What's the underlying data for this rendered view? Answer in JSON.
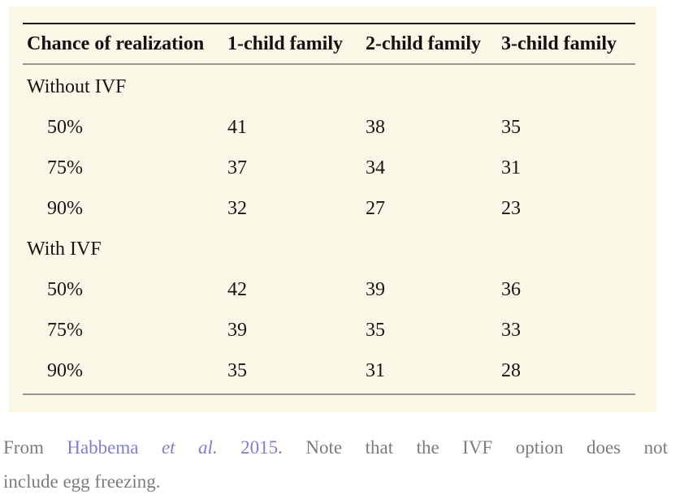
{
  "colors": {
    "card_background": "#fbf7e7",
    "page_background": "#ffffff",
    "top_rule": "#1c1c1c",
    "inner_rules": "#96958f",
    "table_text": "#161616",
    "caption_text": "#7c7c7c",
    "link": "#7f7fd2"
  },
  "chart_data": {
    "type": "table",
    "title": "",
    "headers": [
      "Chance of realization",
      "1-child family",
      "2-child family",
      "3-child family"
    ],
    "sections": [
      {
        "label": "Without IVF",
        "rows": [
          {
            "chance": "50%",
            "values": [
              41,
              38,
              35
            ]
          },
          {
            "chance": "75%",
            "values": [
              37,
              34,
              31
            ]
          },
          {
            "chance": "90%",
            "values": [
              32,
              27,
              23
            ]
          }
        ]
      },
      {
        "label": "With IVF",
        "rows": [
          {
            "chance": "50%",
            "values": [
              42,
              39,
              36
            ]
          },
          {
            "chance": "75%",
            "values": [
              39,
              35,
              33
            ]
          },
          {
            "chance": "90%",
            "values": [
              35,
              31,
              28
            ]
          }
        ]
      }
    ]
  },
  "table": {
    "headers": [
      "Chance of realization",
      "1-child family",
      "2-child family",
      "3-child family"
    ],
    "rows": [
      {
        "type": "section",
        "label": "Without IVF"
      },
      {
        "type": "data",
        "cells": [
          "50%",
          "41",
          "38",
          "35"
        ]
      },
      {
        "type": "data",
        "cells": [
          "75%",
          "37",
          "34",
          "31"
        ]
      },
      {
        "type": "data",
        "cells": [
          "90%",
          "32",
          "27",
          "23"
        ]
      },
      {
        "type": "section",
        "label": "With IVF"
      },
      {
        "type": "data",
        "cells": [
          "50%",
          "42",
          "39",
          "36"
        ]
      },
      {
        "type": "data",
        "cells": [
          "75%",
          "39",
          "35",
          "33"
        ]
      },
      {
        "type": "data",
        "cells": [
          "90%",
          "35",
          "31",
          "28"
        ]
      }
    ]
  },
  "caption": {
    "prefix": "From",
    "link": {
      "author": "Habbema",
      "etal": "et al.",
      "year": "2015"
    },
    "line1_rest": ". Note that the IVF option does not",
    "line2": "include egg freezing."
  }
}
